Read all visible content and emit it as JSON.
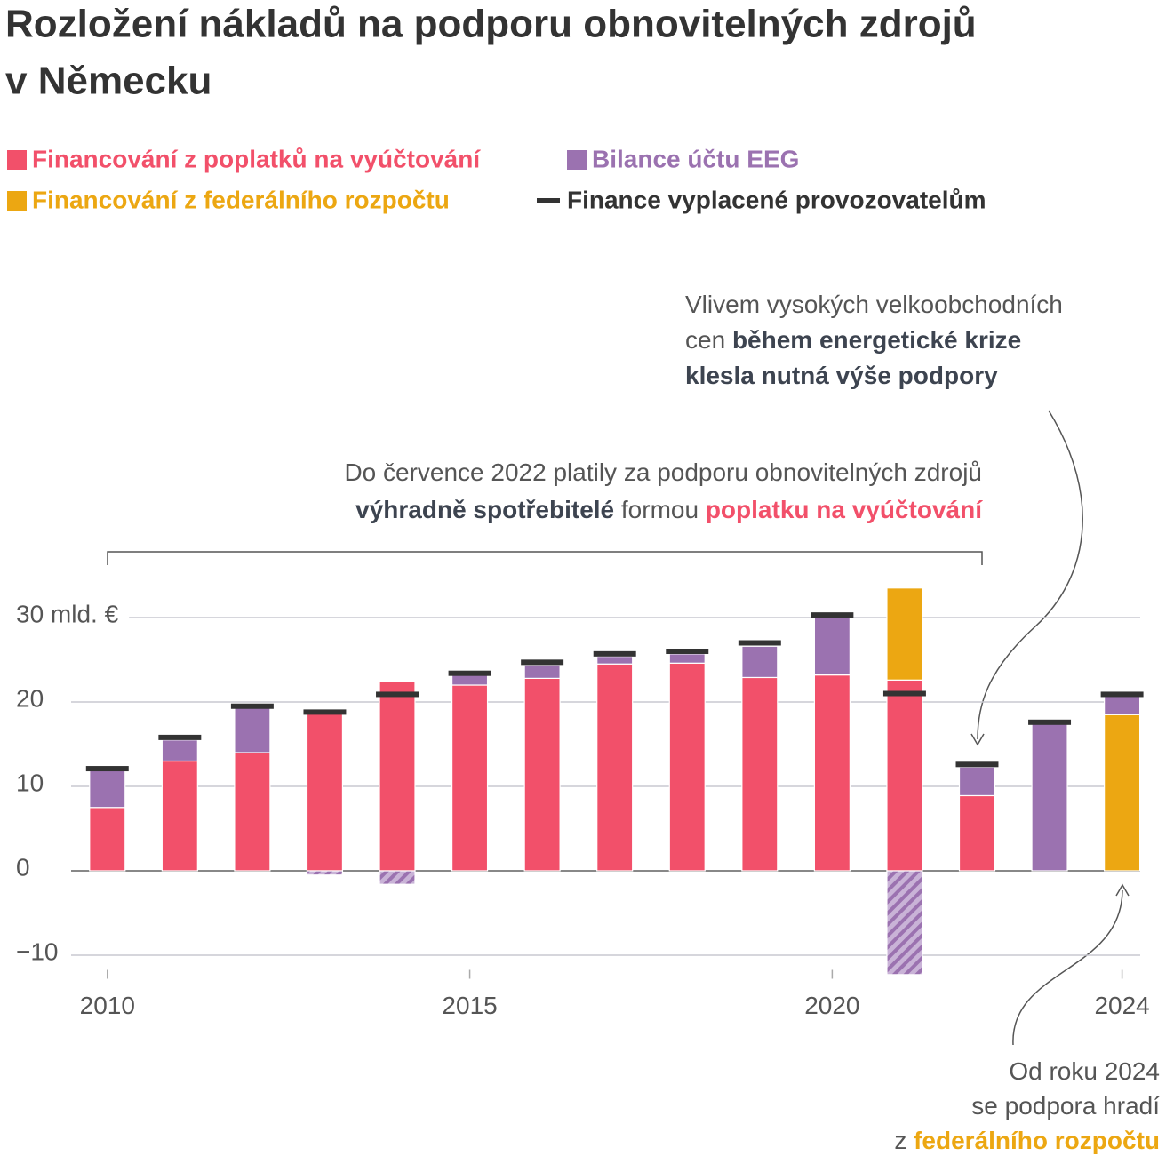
{
  "chart_data": {
    "type": "stacked-bar",
    "title": [
      "Rozložení nákladů na podporu obnovitelných zdrojů",
      "v Německu"
    ],
    "x": [
      2010,
      2011,
      2012,
      2013,
      2014,
      2015,
      2016,
      2017,
      2018,
      2019,
      2020,
      2021,
      2022,
      2023,
      2024
    ],
    "xlim": [
      2009.5,
      2024.25
    ],
    "xticks": [
      2010,
      2015,
      2020,
      2024
    ],
    "ylim": [
      -13,
      35
    ],
    "yticks": [
      {
        "value": -10,
        "label": "−10"
      },
      0,
      10,
      20,
      {
        "value": 30,
        "label": "30 mld. €"
      }
    ],
    "grid": true,
    "series": [
      {
        "name": "Financování z poplatků na vyúčtování",
        "color": "#f2506a",
        "kind": "bar",
        "values": [
          7.5,
          13,
          14,
          18.7,
          22.4,
          22,
          22.8,
          24.5,
          24.6,
          22.9,
          23.2,
          22.6,
          8.9,
          0,
          0
        ]
      },
      {
        "name": "Financování z federálního rozpočtu",
        "color": "#eca712",
        "kind": "bar",
        "values": [
          0,
          0,
          0,
          0,
          0,
          0,
          0,
          0,
          0,
          0,
          0,
          10.9,
          0,
          0,
          18.5
        ]
      },
      {
        "name": "Bilance účtu EEG",
        "color": "#9b72b0",
        "kind": "bar",
        "values": [
          4.4,
          2.5,
          5.3,
          -0.5,
          -1.6,
          1.3,
          1.6,
          0.9,
          1.1,
          3.7,
          6.8,
          -12.3,
          3.4,
          17.4,
          2.2
        ]
      },
      {
        "name": "Finance vyplacené provozovatelům",
        "color": "#333333",
        "kind": "marker",
        "values": [
          12.1,
          15.8,
          19.5,
          18.8,
          20.9,
          23.4,
          24.7,
          25.7,
          26,
          27,
          30.3,
          21,
          12.6,
          17.6,
          20.9
        ]
      }
    ],
    "annotations": [
      {
        "lines": [
          [
            {
              "text": "Vlivem vysokých velkoobchodních"
            }
          ],
          [
            {
              "text": "cen "
            },
            {
              "text": "během energetické krize",
              "bold": true
            }
          ],
          [
            {
              "text": "klesla nutná výše podpory",
              "bold": true
            }
          ]
        ]
      },
      {
        "lines": [
          [
            {
              "text": "Do července 2022 platily za podporu obnovitelných zdrojů"
            }
          ],
          [
            {
              "text": "výhradně spotřebitelé",
              "bold": true
            },
            {
              "text": " formou "
            },
            {
              "text": "poplatku na vyúčtování",
              "bold": true,
              "color": "#f2506a"
            }
          ]
        ]
      },
      {
        "lines": [
          [
            {
              "text": "Od roku 2024"
            }
          ],
          [
            {
              "text": "se podpora hradí"
            }
          ],
          [
            {
              "text": "z "
            },
            {
              "text": "federálního rozpočtu",
              "bold": true,
              "color": "#eca712"
            }
          ]
        ]
      }
    ]
  }
}
